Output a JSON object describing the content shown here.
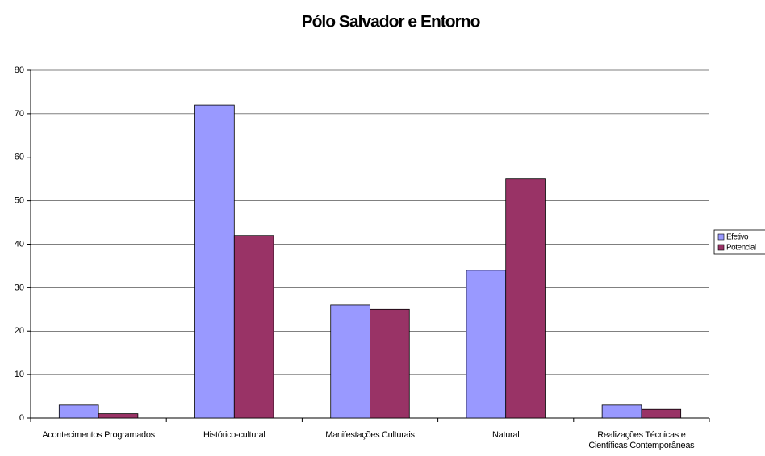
{
  "chart_data": {
    "type": "bar",
    "title": "Pólo Salvador e Entorno",
    "categories": [
      "Acontecimentos Programados",
      "Histórico-cultural",
      "Manifestações Culturais",
      "Natural",
      "Realizações Técnicas e Científicas Contemporâneas"
    ],
    "series": [
      {
        "name": "Efetivo",
        "color": "#9999ff",
        "values": [
          3,
          72,
          26,
          34,
          3
        ]
      },
      {
        "name": "Potencial",
        "color": "#993366",
        "values": [
          1,
          42,
          25,
          55,
          2
        ]
      }
    ],
    "ylim": [
      0,
      80
    ],
    "yticks": [
      0,
      10,
      20,
      30,
      40,
      50,
      60,
      70,
      80
    ],
    "grid": true,
    "legend": "right"
  }
}
